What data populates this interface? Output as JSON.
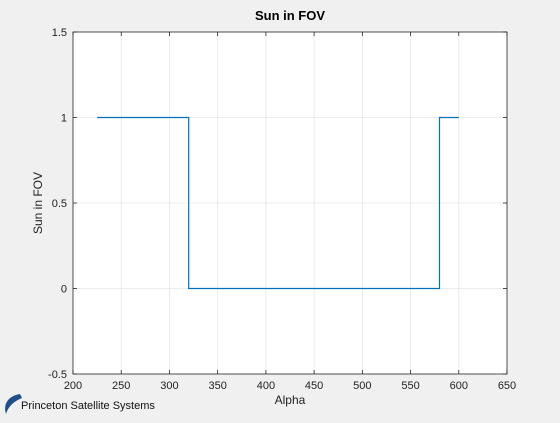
{
  "chart_data": {
    "type": "line",
    "title": "Sun in FOV",
    "xlabel": "Alpha",
    "ylabel": "Sun in FOV",
    "xlim": [
      200,
      650
    ],
    "ylim": [
      -0.5,
      1.5
    ],
    "xticks": [
      200,
      250,
      300,
      350,
      400,
      450,
      500,
      550,
      600,
      650
    ],
    "yticks": [
      -0.5,
      0,
      0.5,
      1,
      1.5
    ],
    "xtick_labels": [
      "200",
      "250",
      "300",
      "350",
      "400",
      "450",
      "500",
      "550",
      "600",
      "650"
    ],
    "ytick_labels": [
      "-0.5",
      "0",
      "0.5",
      "1",
      "1.5"
    ],
    "grid": true,
    "series": [
      {
        "color": "#0072bd",
        "x": [
          225,
          320,
          320,
          580,
          580,
          600
        ],
        "y": [
          1,
          1,
          0,
          0,
          1,
          1
        ]
      }
    ]
  },
  "logo": {
    "text": "Princeton Satellite Systems",
    "color": "#1f4e8c"
  }
}
